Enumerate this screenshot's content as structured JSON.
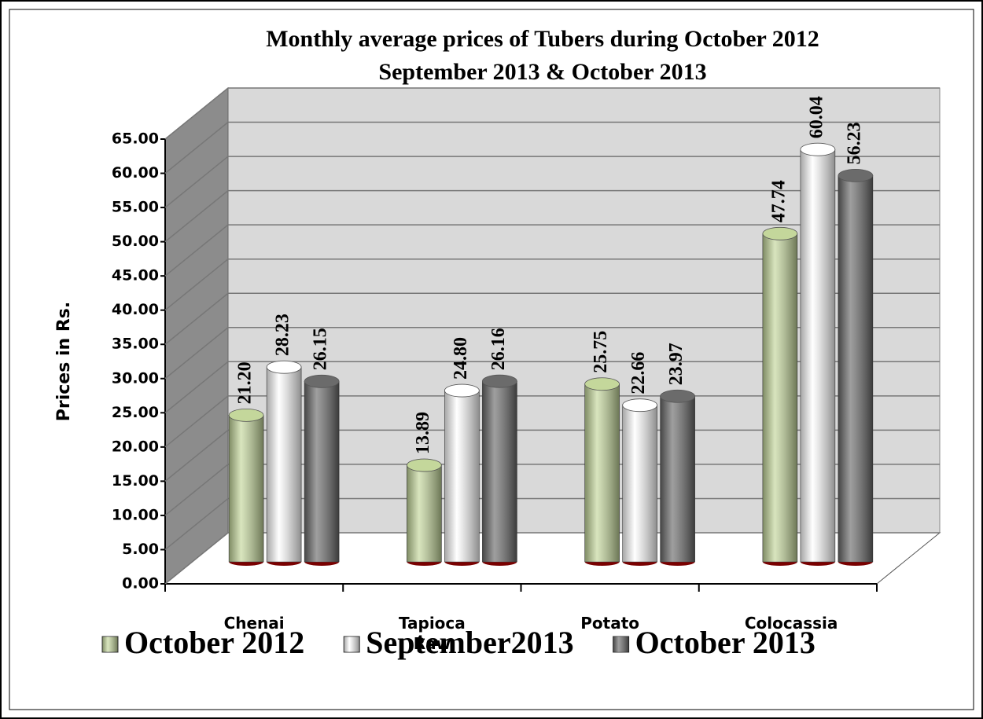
{
  "chart_data": {
    "type": "bar",
    "title": [
      "Monthly average prices of Tubers during October  2012",
      "September 2013 & October 2013"
    ],
    "y_label": "Prices in Rs.",
    "categories": [
      "Chenai",
      "Tapioca Raw",
      "Potato",
      "Colocassia"
    ],
    "series": [
      {
        "name": "October 2012",
        "color": "#c4d79b",
        "values": [
          21.2,
          13.89,
          25.75,
          47.74
        ],
        "value_labels": [
          "21.20",
          "13.89",
          "25.75",
          "47.74"
        ]
      },
      {
        "name": "September2013",
        "color": "#ffffff",
        "values": [
          28.23,
          24.8,
          22.66,
          60.04
        ],
        "value_labels": [
          "28.23",
          "24.80",
          "22.66",
          "60.04"
        ]
      },
      {
        "name": "October 2013",
        "color": "#6b6b6b",
        "values": [
          26.15,
          26.16,
          23.97,
          56.23
        ],
        "value_labels": [
          "26.15",
          "26.16",
          "23.97",
          "56.23"
        ]
      }
    ],
    "ylim": [
      0,
      65
    ],
    "yticks": [
      {
        "value": 0,
        "label": "0.00"
      },
      {
        "value": 5,
        "label": "5.00"
      },
      {
        "value": 10,
        "label": "10.00"
      },
      {
        "value": 15,
        "label": "15.00"
      },
      {
        "value": 20,
        "label": "20.00"
      },
      {
        "value": 25,
        "label": "25.00"
      },
      {
        "value": 30,
        "label": "30.00"
      },
      {
        "value": 35,
        "label": "35.00"
      },
      {
        "value": 40,
        "label": "40.00"
      },
      {
        "value": 45,
        "label": "45.00"
      },
      {
        "value": 50,
        "label": "50.00"
      },
      {
        "value": 55,
        "label": "55.00"
      },
      {
        "value": 60,
        "label": "60.00"
      },
      {
        "value": 65,
        "label": "65.00"
      }
    ],
    "grid": true
  }
}
